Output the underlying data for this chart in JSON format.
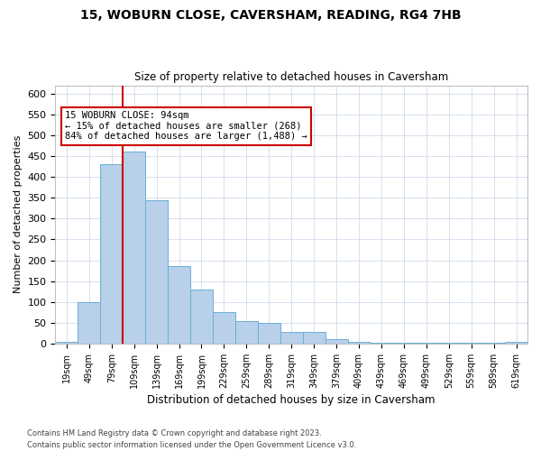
{
  "title1": "15, WOBURN CLOSE, CAVERSHAM, READING, RG4 7HB",
  "title2": "Size of property relative to detached houses in Caversham",
  "xlabel": "Distribution of detached houses by size in Caversham",
  "ylabel": "Number of detached properties",
  "footnote1": "Contains HM Land Registry data © Crown copyright and database right 2023.",
  "footnote2": "Contains public sector information licensed under the Open Government Licence v3.0.",
  "annotation_title": "15 WOBURN CLOSE: 94sqm",
  "annotation_line1": "← 15% of detached houses are smaller (268)",
  "annotation_line2": "84% of detached houses are larger (1,488) →",
  "bar_categories": [
    "19sqm",
    "49sqm",
    "79sqm",
    "109sqm",
    "139sqm",
    "169sqm",
    "199sqm",
    "229sqm",
    "259sqm",
    "289sqm",
    "319sqm",
    "349sqm",
    "379sqm",
    "409sqm",
    "439sqm",
    "469sqm",
    "499sqm",
    "529sqm",
    "559sqm",
    "589sqm",
    "619sqm"
  ],
  "bar_values": [
    5,
    100,
    430,
    460,
    345,
    185,
    130,
    75,
    55,
    50,
    28,
    28,
    10,
    5,
    2,
    2,
    1,
    1,
    1,
    1,
    5
  ],
  "bar_color": "#b8d0ea",
  "bar_edge_color": "#6aafd6",
  "vline_color": "#cc0000",
  "vline_x": 2.5,
  "ylim": [
    0,
    620
  ],
  "yticks": [
    0,
    50,
    100,
    150,
    200,
    250,
    300,
    350,
    400,
    450,
    500,
    550,
    600
  ],
  "annotation_box_color": "#cc0000",
  "background_color": "#ffffff",
  "grid_color": "#d0daea"
}
